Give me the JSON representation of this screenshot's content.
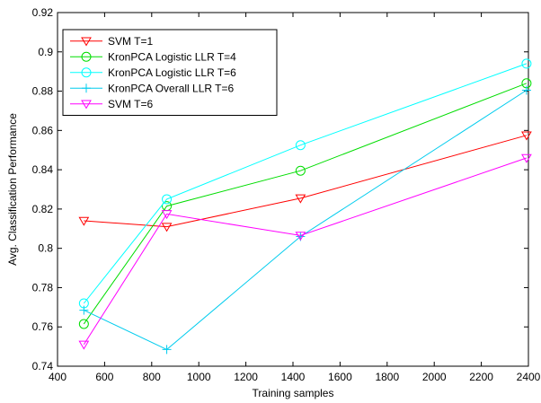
{
  "chart_data": {
    "type": "line",
    "xlabel": "Training samples",
    "ylabel": "Avg. Classification Performance",
    "xlim": [
      400,
      2400
    ],
    "ylim": [
      0.74,
      0.92
    ],
    "xticks": [
      400,
      600,
      800,
      1000,
      1200,
      1400,
      1600,
      1800,
      2000,
      2200,
      2400
    ],
    "yticks": [
      0.74,
      0.76,
      0.78,
      0.8,
      0.82,
      0.84,
      0.86,
      0.88,
      0.9,
      0.92
    ],
    "xtick_labels": [
      "400",
      "600",
      "800",
      "1000",
      "1200",
      "1400",
      "1600",
      "1800",
      "2000",
      "2200",
      "2400"
    ],
    "ytick_labels": [
      "0.74",
      "0.76",
      "0.78",
      "0.8",
      "0.82",
      "0.84",
      "0.86",
      "0.88",
      "0.9",
      "0.92"
    ],
    "grid": false,
    "legend_position": "top-left",
    "x": [
      512,
      864,
      1432,
      2392
    ],
    "series": [
      {
        "name": "SVM T=1",
        "color": "#ff0000",
        "marker": "triangle-down",
        "values": [
          0.814,
          0.811,
          0.8255,
          0.8575
        ]
      },
      {
        "name": "KronPCA Logistic LLR T=4",
        "color": "#00dd00",
        "marker": "circle",
        "values": [
          0.7615,
          0.8215,
          0.8395,
          0.884
        ]
      },
      {
        "name": "KronPCA Logistic LLR T=6",
        "color": "#00ffff",
        "marker": "circle",
        "values": [
          0.772,
          0.825,
          0.8525,
          0.894
        ]
      },
      {
        "name": "KronPCA Overall LLR T=6",
        "color": "#00ccee",
        "marker": "plus",
        "values": [
          0.7685,
          0.7485,
          0.806,
          0.8805
        ]
      },
      {
        "name": "SVM T=6",
        "color": "#ff00ff",
        "marker": "triangle-down",
        "values": [
          0.751,
          0.8175,
          0.8065,
          0.846
        ]
      }
    ]
  }
}
